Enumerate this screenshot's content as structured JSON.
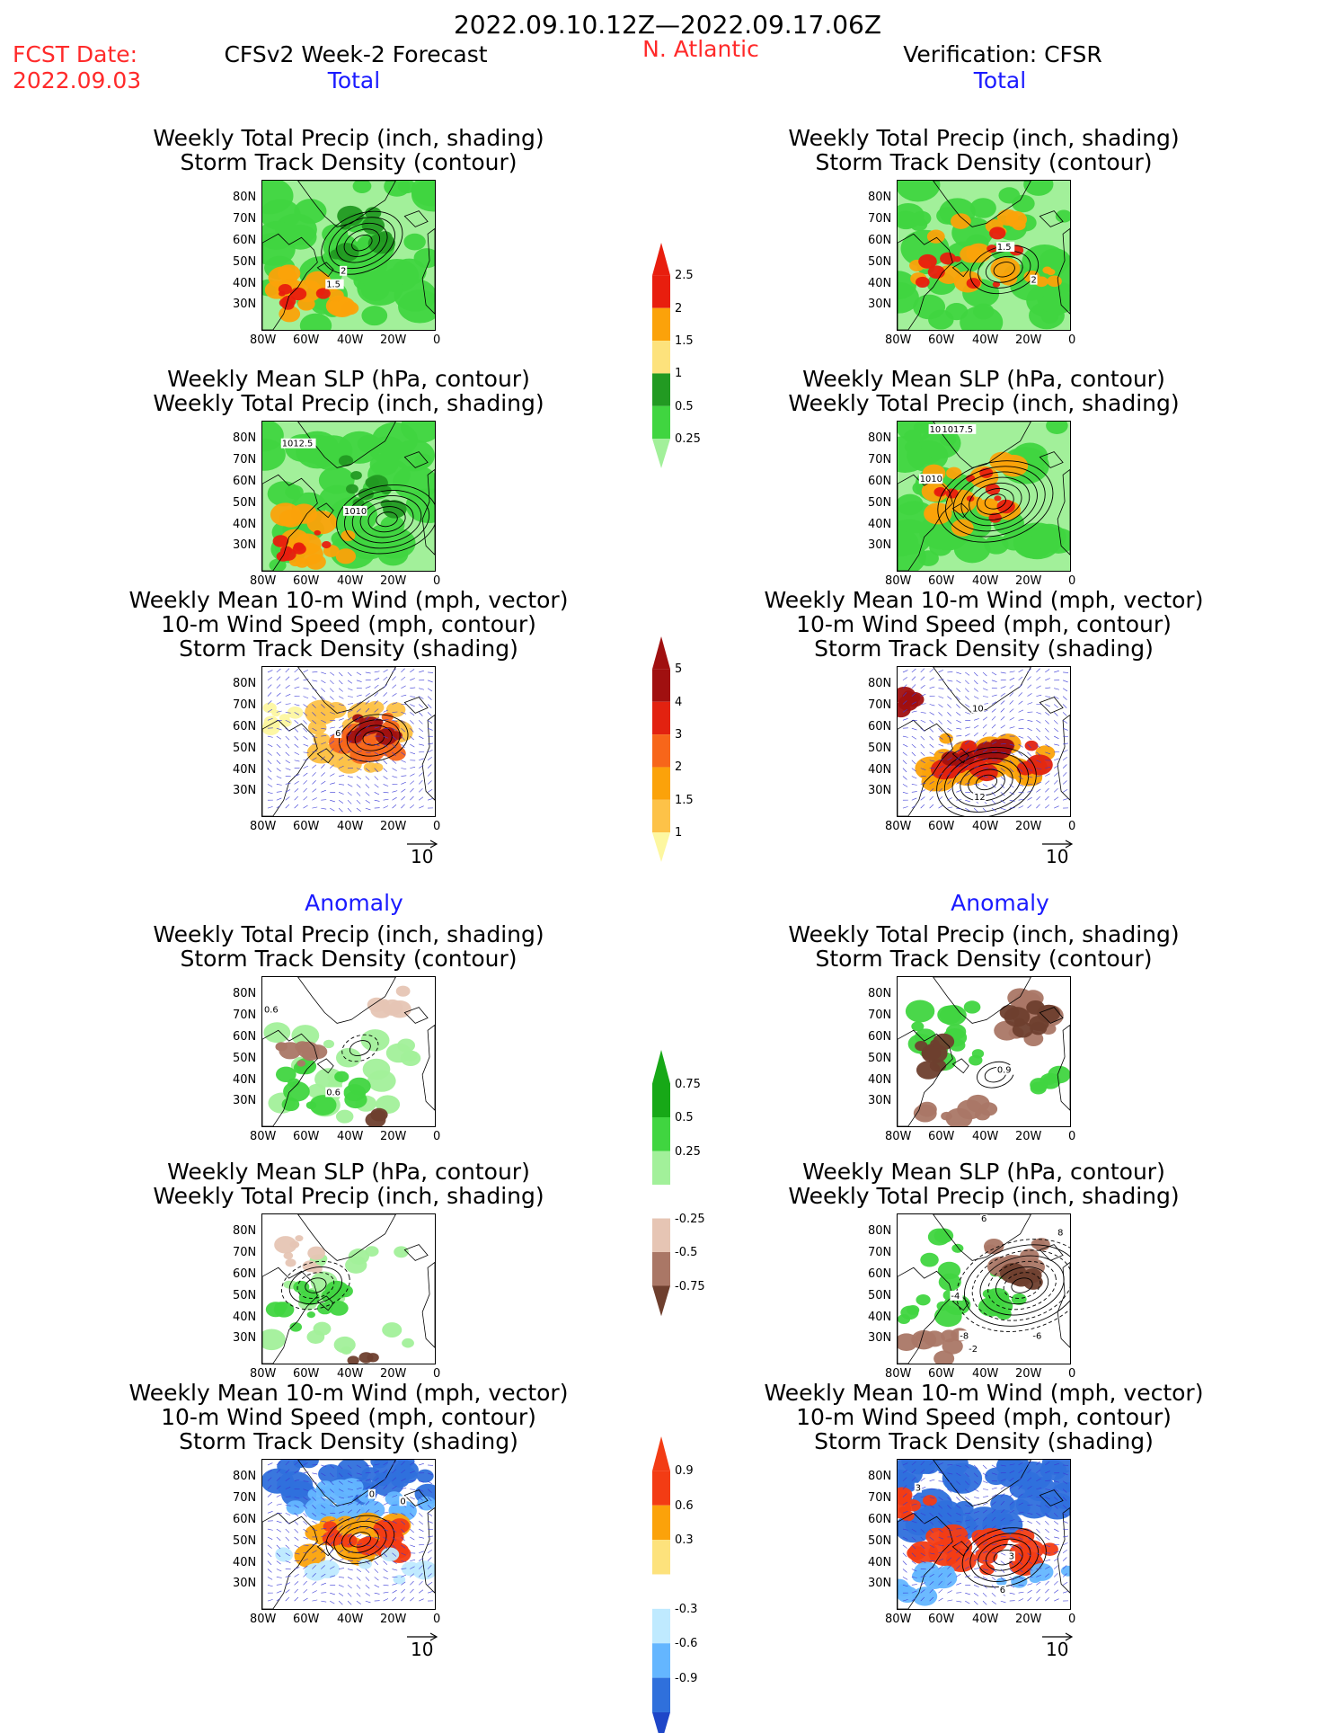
{
  "title": "2022.09.10.12Z—2022.09.17.06Z",
  "fcst_label": "FCST Date:",
  "fcst_date": "2022.09.03",
  "model_label": "CFSv2 Week-2 Forecast",
  "region": "N. Atlantic",
  "verif_label": "Verification: CFSR",
  "section_total": "Total",
  "section_anomaly": "Anomaly",
  "panel_titles": {
    "precip_track": [
      "Weekly Total Precip (inch, shading)",
      "Storm Track Density (contour)"
    ],
    "slp_precip": [
      "Weekly Mean SLP (hPa, contour)",
      "Weekly Total Precip (inch, shading)"
    ],
    "wind_track": [
      "Weekly Mean 10-m Wind (mph, vector)",
      "10-m Wind Speed (mph, contour)",
      "Storm Track Density (shading)"
    ]
  },
  "lat_labels": [
    "80N",
    "70N",
    "60N",
    "50N",
    "40N",
    "30N"
  ],
  "lon_labels": [
    "80W",
    "60W",
    "40W",
    "20W",
    "0"
  ],
  "vector_ref": "10",
  "contour_labels": {
    "fc_total_track": [
      "1.5",
      "2"
    ],
    "fc_total_slp": [
      "1012.5",
      "1010"
    ],
    "fc_total_wind": [
      "6"
    ],
    "ob_total_track": [
      "1.5",
      "2"
    ],
    "ob_total_slp": [
      "1017.5",
      "1010",
      "10"
    ],
    "ob_total_wind": [
      "10",
      "12"
    ],
    "fc_anom_track": [
      "0.6",
      "0.6"
    ],
    "ob_anom_track": [
      "0.9"
    ],
    "ob_anom_slp": [
      "6",
      "-4",
      "-8",
      "-2",
      "-6",
      "8"
    ],
    "fc_anom_wind": [
      "0",
      "0"
    ],
    "ob_anom_wind": [
      "3",
      "3",
      "6"
    ]
  },
  "colorbars": {
    "precip_total": {
      "labels": [
        "2.5",
        "2",
        "1.5",
        "1",
        "0.5",
        "0.25"
      ],
      "colors": [
        "#e81e0e",
        "#fba20a",
        "#fde27c",
        "#229a22",
        "#40d540",
        "#a2f09a"
      ]
    },
    "track_total": {
      "labels": [
        "5",
        "4",
        "3",
        "2",
        "1.5",
        "1"
      ],
      "colors": [
        "#a01010",
        "#e22210",
        "#f7661a",
        "#fba20a",
        "#fdc248",
        "#fdf7a0"
      ]
    },
    "precip_anom": {
      "labels": [
        "0.75",
        "0.5",
        "0.25",
        "-0.25",
        "-0.5",
        "-0.75"
      ],
      "colors": [
        "#17a817",
        "#40d540",
        "#a2f09a",
        "#ffffff",
        "#e6c5b4",
        "#aa7766",
        "#6e3f2e"
      ]
    },
    "track_anom": {
      "labels": [
        "0.9",
        "0.6",
        "0.3",
        "-0.3",
        "-0.6",
        "-0.9"
      ],
      "colors": [
        "#f33c14",
        "#fba20a",
        "#fde27c",
        "#ffffff",
        "#bfeaff",
        "#64b6ff",
        "#2f70dc",
        "#1e46c8"
      ]
    }
  },
  "chart_data": {
    "type": "map-panels",
    "region": "N. Atlantic",
    "lat_range": [
      "25N",
      "85N"
    ],
    "lon_range": [
      "80W",
      "0"
    ],
    "panels": [
      "fc_total_track",
      "fc_total_slp",
      "fc_total_wind",
      "ob_total_track",
      "ob_total_slp",
      "ob_total_wind",
      "fc_anom_track",
      "fc_anom_slp",
      "fc_anom_wind",
      "ob_anom_track",
      "ob_anom_slp",
      "ob_anom_wind"
    ]
  }
}
